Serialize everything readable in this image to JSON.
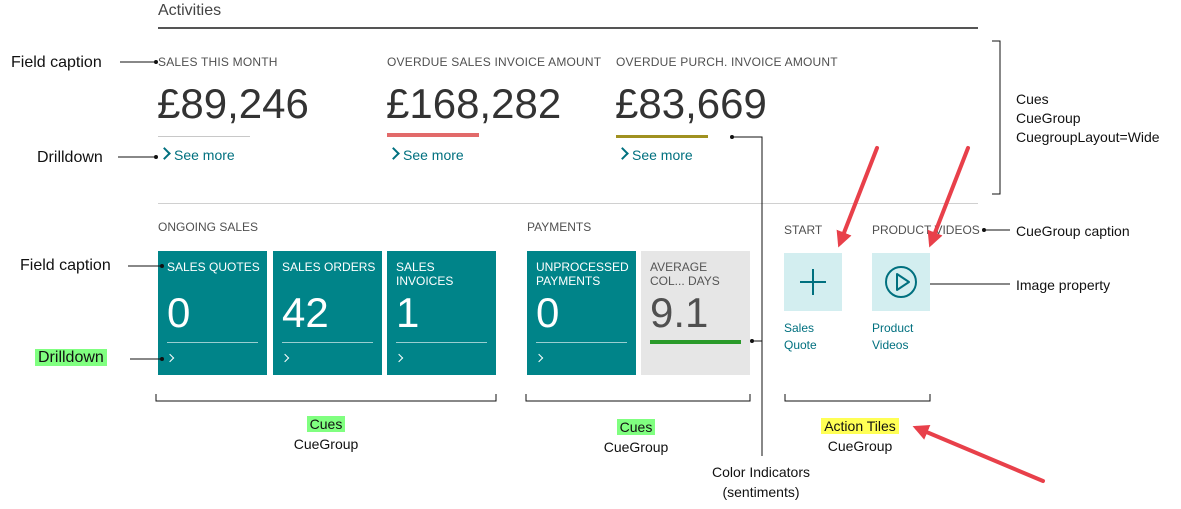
{
  "activities": {
    "title": "Activities"
  },
  "wide_cues": [
    {
      "caption": "SALES THIS MONTH",
      "value": "£89,246",
      "see_more": "See more",
      "bar_color": "#c8c8c8"
    },
    {
      "caption": "OVERDUE SALES INVOICE AMOUNT",
      "value": "£168,282",
      "see_more": "See more",
      "bar_color": "#e26a6a"
    },
    {
      "caption": "OVERDUE PURCH. INVOICE AMOUNT",
      "value": "£83,669",
      "see_more": "See more",
      "bar_color": "#a09120"
    }
  ],
  "ongoing_sales": {
    "caption": "ONGOING SALES",
    "tiles": [
      {
        "caption": "SALES QUOTES",
        "value": "0"
      },
      {
        "caption": "SALES ORDERS",
        "value": "42"
      },
      {
        "caption": "SALES INVOICES",
        "value": "1"
      }
    ]
  },
  "payments": {
    "caption": "PAYMENTS",
    "tiles": [
      {
        "caption": "UNPROCESSED PAYMENTS",
        "value": "0"
      },
      {
        "caption": "AVERAGE COL... DAYS",
        "value": "9.1",
        "indicator_color": "#2a9a2a"
      }
    ]
  },
  "start": {
    "caption": "START",
    "label_line1": "Sales",
    "label_line2": "Quote",
    "icon": "plus-icon"
  },
  "product_videos": {
    "caption": "PRODUCT VIDEOS",
    "label_line1": "Product",
    "label_line2": "Videos",
    "icon": "play-circle-icon"
  },
  "annotations": {
    "field_caption_top": "Field caption",
    "drilldown_top": "Drilldown",
    "field_caption_mid": "Field caption",
    "drilldown_mid": "Drilldown",
    "cues_right_1": "Cues",
    "cues_right_2": "CueGroup",
    "cues_right_3": "CuegroupLayout=Wide",
    "cuegroup_caption": "CueGroup caption",
    "image_property": "Image property",
    "cues_bottom_1_a": "Cues",
    "cues_bottom_1_b": "CueGroup",
    "cues_bottom_2_a": "Cues",
    "cues_bottom_2_b": "CueGroup",
    "action_tiles_a": "Action Tiles",
    "action_tiles_b": "CueGroup",
    "color_indicators_a": "Color Indicators",
    "color_indicators_b": "(sentiments)"
  },
  "colors": {
    "tile_teal": "#008489",
    "accent_link": "#00707f",
    "arrow_red": "#e8404a",
    "highlight_green": "#80ff80",
    "highlight_yellow": "#ffff55"
  }
}
